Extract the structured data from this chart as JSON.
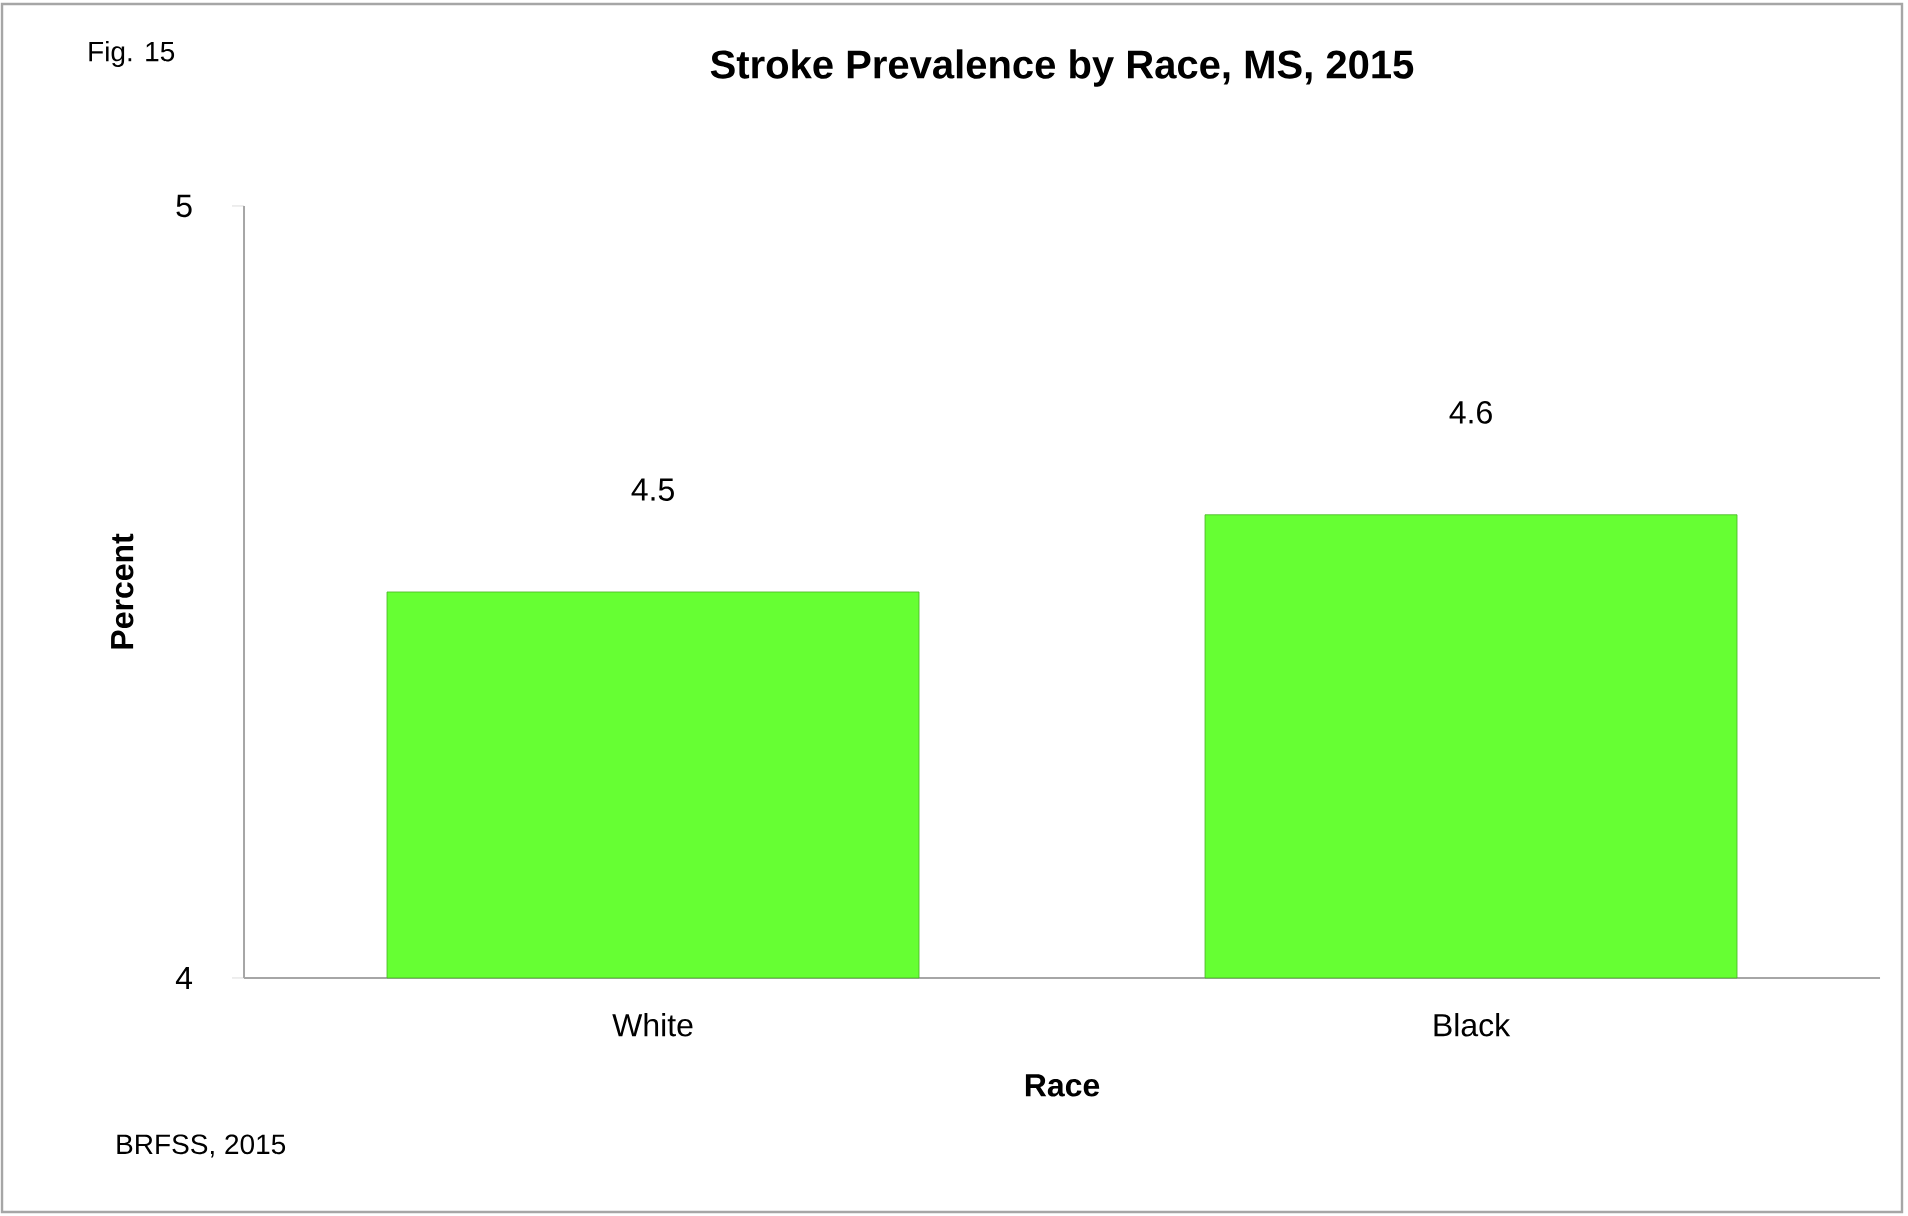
{
  "chart_data": {
    "type": "bar",
    "title": "Stroke Prevalence by Race, MS, 2015",
    "xlabel": "Race",
    "ylabel": "Percent",
    "categories": [
      "White",
      "Black"
    ],
    "values": [
      4.5,
      4.6
    ],
    "color": "#66ff33",
    "ylim": [
      4,
      5
    ],
    "yticks": [
      4,
      5
    ],
    "grid": false,
    "data_labels": true,
    "annotations": [
      "Fig. 15",
      "BRFSS, 2015"
    ]
  }
}
